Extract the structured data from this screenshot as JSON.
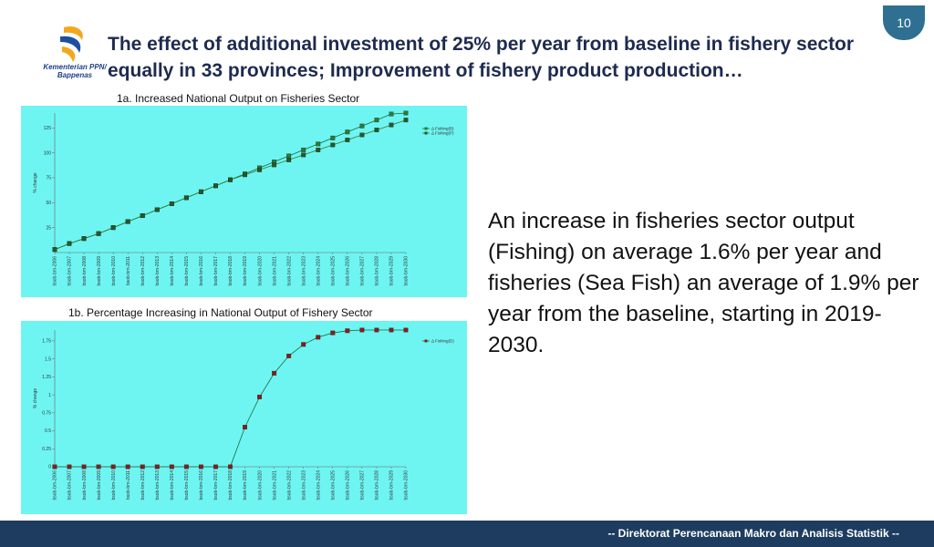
{
  "page_number": "10",
  "logo": {
    "line1": "Kementerian PPN/",
    "line2": "Bappenas"
  },
  "title": "The effect of additional investment of 25% per year from baseline in fishery sector equally in 33 provinces; Improvement of fishery product production…",
  "body_text": "An increase in fisheries sector output (Fishing) on average 1.6% per year and fisheries (Sea Fish) an average of 1.9% per year from the baseline, starting in 2019-2030.",
  "footer": "-- Direktorat Perencanaan Makro dan Analisis Statistik --",
  "colors": {
    "chart_bg": "#6ef5f2",
    "footer_bg": "#1d3c5f",
    "badge": "#2e6f92",
    "title": "#1e2b4f"
  },
  "chart_data": [
    {
      "type": "line",
      "title": "1a. Increased National Output on Fisheries Sector",
      "xlabel": "",
      "ylabel": "% change",
      "ylim": [
        0,
        140
      ],
      "yticks": [
        25,
        50,
        75,
        100,
        125
      ],
      "categories": [
        "bsob-brn-2006",
        "bsob-brn-2007",
        "bsob-brn-2008",
        "bsob-brn-2009",
        "bsob-brn-2010",
        "bsob-brn-2011",
        "bsob-brn-2012",
        "bsob-brn-2013",
        "bsob-brn-2014",
        "bsob-brn-2015",
        "bsob-brn-2016",
        "bsob-brn-2017",
        "bsob-brn-2018",
        "bsob-brn-2019",
        "bsob-brn-2020",
        "bsob-brn-2021",
        "bsob-brn-2022",
        "bsob-brn-2023",
        "bsob-brn-2024",
        "bsob-brn-2025",
        "bsob-brn-2026",
        "bsob-brn-2027",
        "bsob-brn-2028",
        "bsob-brn-2029",
        "bsob-brn-2030"
      ],
      "series": [
        {
          "name": "Δ Fishing(B)",
          "values": [
            3,
            9,
            14,
            19,
            25,
            31,
            37,
            43,
            49,
            55,
            61,
            67,
            73,
            79,
            85,
            91,
            97,
            103,
            109,
            115,
            121,
            127,
            133,
            139,
            145
          ]
        },
        {
          "name": "Δ Fishing(P)",
          "values": [
            3,
            9,
            14,
            19,
            25,
            31,
            37,
            43,
            49,
            55,
            61,
            67,
            73,
            78,
            83,
            88,
            93,
            98,
            103,
            108,
            113,
            118,
            123,
            128,
            133
          ]
        }
      ]
    },
    {
      "type": "line",
      "title": "1b. Percentage Increasing in National Output of Fishery Sector",
      "xlabel": "",
      "ylabel": "% change",
      "ylim": [
        0,
        1.9
      ],
      "yticks": [
        0,
        0.25,
        0.5,
        0.75,
        1,
        1.25,
        1.5,
        1.75
      ],
      "categories": [
        "bsob-brn-2006",
        "bsob-brn-2007",
        "bsob-brn-2008",
        "bsob-brn-2009",
        "bsob-brn-2010",
        "bsob-brn-2011",
        "bsob-brn-2012",
        "bsob-brn-2013",
        "bsob-brn-2014",
        "bsob-brn-2015",
        "bsob-brn-2016",
        "bsob-brn-2017",
        "bsob-brn-2018",
        "bsob-brn-2019",
        "bsob-brn-2020",
        "bsob-brn-2021",
        "bsob-brn-2022",
        "bsob-brn-2023",
        "bsob-brn-2024",
        "bsob-brn-2025",
        "bsob-brn-2026",
        "bsob-brn-2027",
        "bsob-brn-2028",
        "bsob-brn-2029",
        "bsob-brn-2030"
      ],
      "series": [
        {
          "name": "Δ Fishing(D)",
          "values": [
            0,
            0,
            0,
            0,
            0,
            0,
            0,
            0,
            0,
            0,
            0,
            0,
            0,
            0.55,
            0.97,
            1.3,
            1.54,
            1.7,
            1.8,
            1.86,
            1.89,
            1.91,
            1.91,
            1.91,
            1.9
          ]
        }
      ]
    }
  ]
}
